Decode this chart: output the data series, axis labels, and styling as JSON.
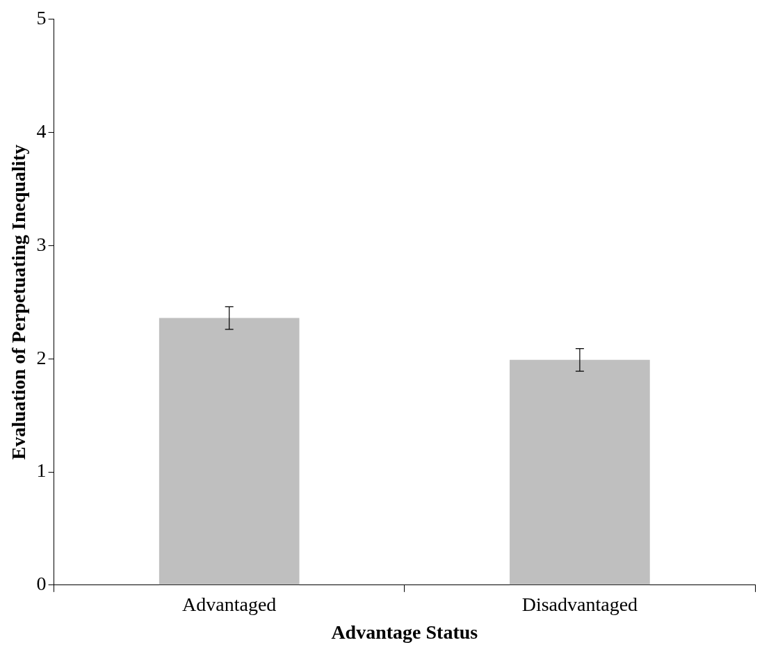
{
  "chart_data": {
    "type": "bar",
    "xlabel": "Advantage Status",
    "ylabel": "Evaluation of Perpetuating Inequality",
    "categories": [
      "Advantaged",
      "Disadvantaged"
    ],
    "values": [
      2.36,
      1.99
    ],
    "errors": [
      0.1,
      0.1
    ],
    "color": "#bfbfbf",
    "ylim": [
      0,
      5
    ],
    "yticks": [
      0,
      1,
      2,
      3,
      4,
      5
    ],
    "grid": false,
    "legend": false
  }
}
